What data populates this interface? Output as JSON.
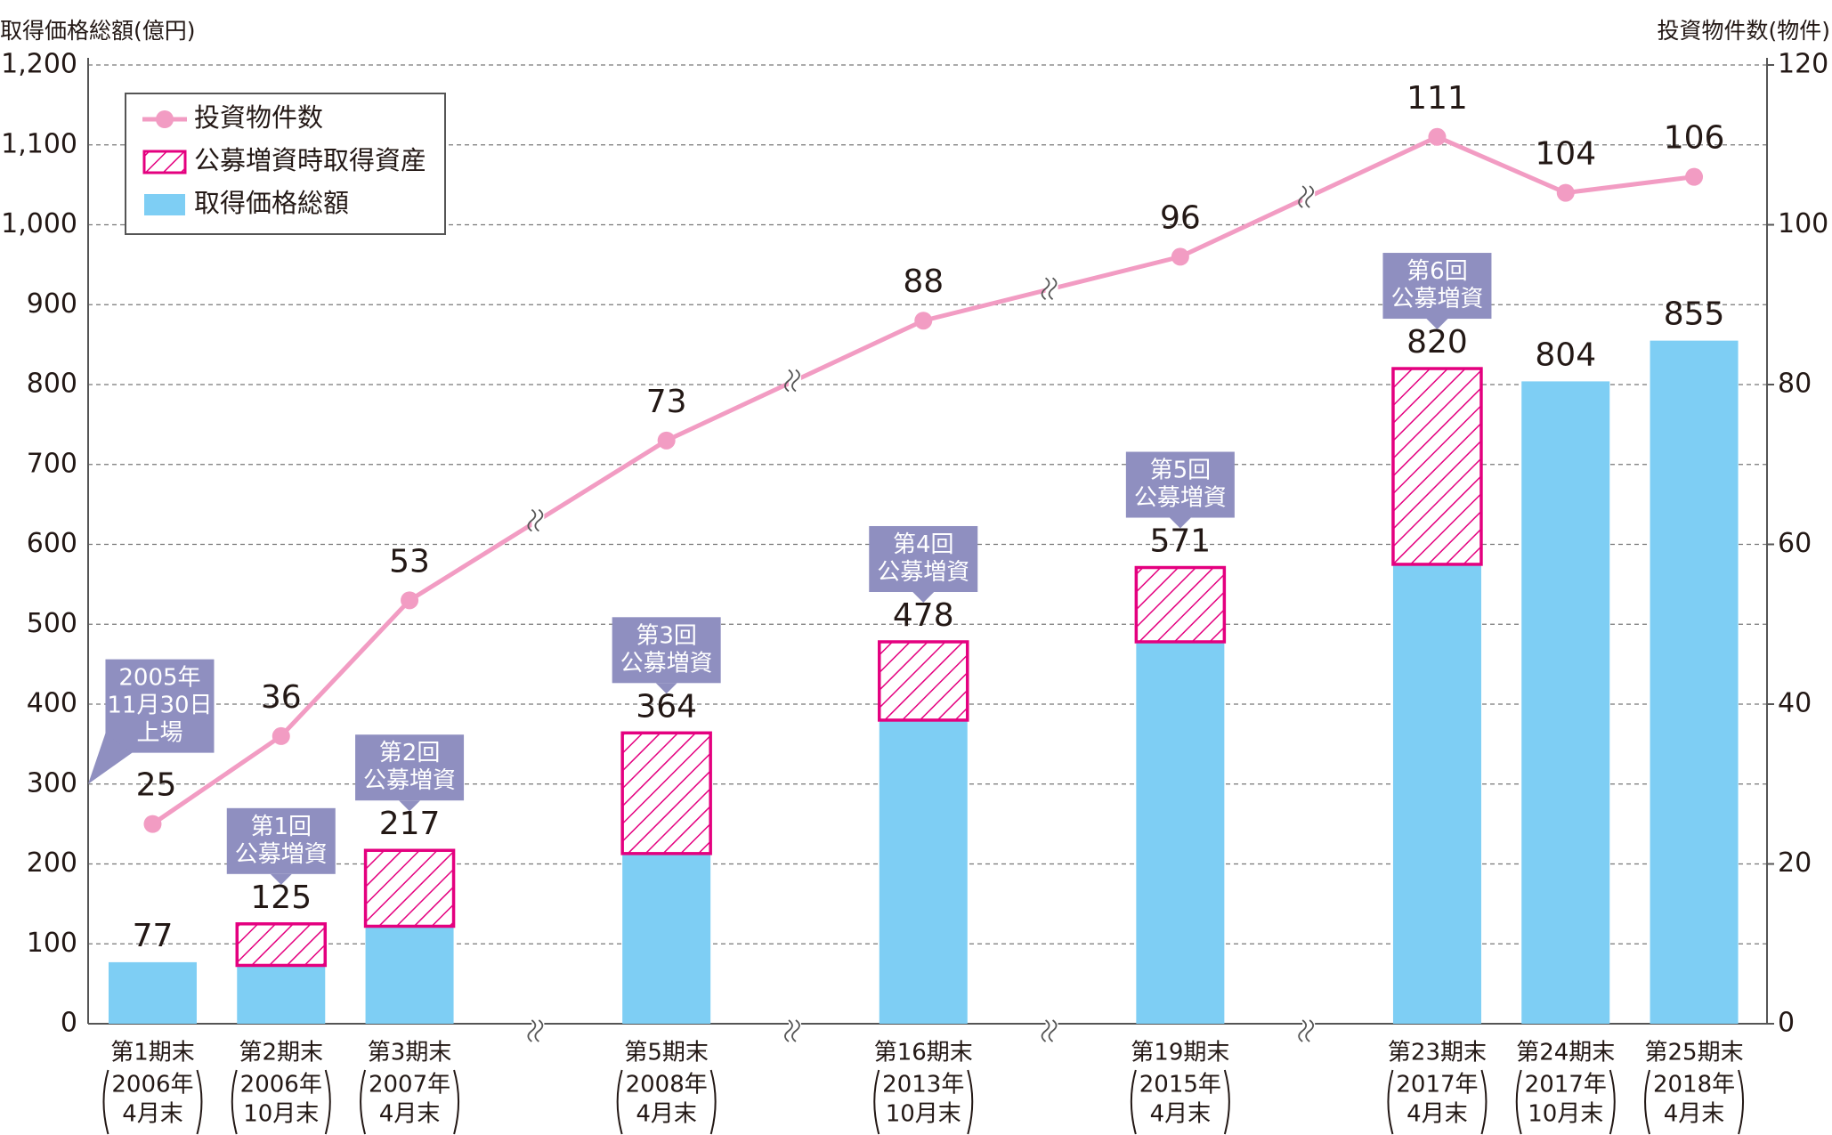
{
  "chart_data": {
    "type": "combo",
    "y_title": "取得価格総額(億円)",
    "y2_title": "投資物件数(物件)",
    "categories": [
      "第1期末",
      "第2期末",
      "第3期末",
      "第5期末",
      "第16期末",
      "第19期末",
      "第23期末",
      "第24期末",
      "第25期末"
    ],
    "category_dates": [
      [
        "2006年",
        "4月末"
      ],
      [
        "2006年",
        "10月末"
      ],
      [
        "2007年",
        "4月末"
      ],
      [
        "2008年",
        "4月末"
      ],
      [
        "2013年",
        "10月末"
      ],
      [
        "2015年",
        "4月末"
      ],
      [
        "2017年",
        "4月末"
      ],
      [
        "2017年",
        "10月末"
      ],
      [
        "2018年",
        "4月末"
      ]
    ],
    "series": [
      {
        "name": "投資物件数",
        "type": "line",
        "axis": "y2",
        "color": "#f29cc3",
        "values": [
          25,
          36,
          53,
          73,
          88,
          96,
          111,
          104,
          106
        ]
      },
      {
        "name": "公募増資時取得資産",
        "type": "bar",
        "pattern": "hatch",
        "color": "#e4007f",
        "values": [
          null,
          52,
          95,
          151,
          98,
          93,
          245,
          null,
          null
        ]
      },
      {
        "name": "取得価格総額",
        "type": "bar",
        "color": "#7ecef4",
        "values": [
          77,
          73,
          122,
          213,
          380,
          478,
          575,
          804,
          855
        ]
      }
    ],
    "totals": [
      77,
      125,
      217,
      364,
      478,
      571,
      820,
      804,
      855
    ],
    "callouts": [
      [
        "2005年",
        "11月30日",
        "上場"
      ],
      [
        "第1回",
        "公募増資"
      ],
      [
        "第2回",
        "公募増資"
      ],
      [
        "第3回",
        "公募増資"
      ],
      [
        "第4回",
        "公募増資"
      ],
      [
        "第5回",
        "公募増資"
      ],
      [
        "第6回",
        "公募増資"
      ],
      null,
      null
    ],
    "callout_color": "#8f8fc0",
    "ylim": [
      0,
      1200
    ],
    "yticks": [
      0,
      100,
      200,
      300,
      400,
      500,
      600,
      700,
      800,
      900,
      {
        "value": 1000,
        "label": "1,000"
      },
      {
        "value": 1100,
        "label": "1,100"
      },
      {
        "value": 1200,
        "label": "1,200"
      }
    ],
    "y2lim": [
      0,
      120
    ],
    "y2ticks": [
      0,
      20,
      40,
      60,
      80,
      100,
      120
    ],
    "grid": true
  }
}
